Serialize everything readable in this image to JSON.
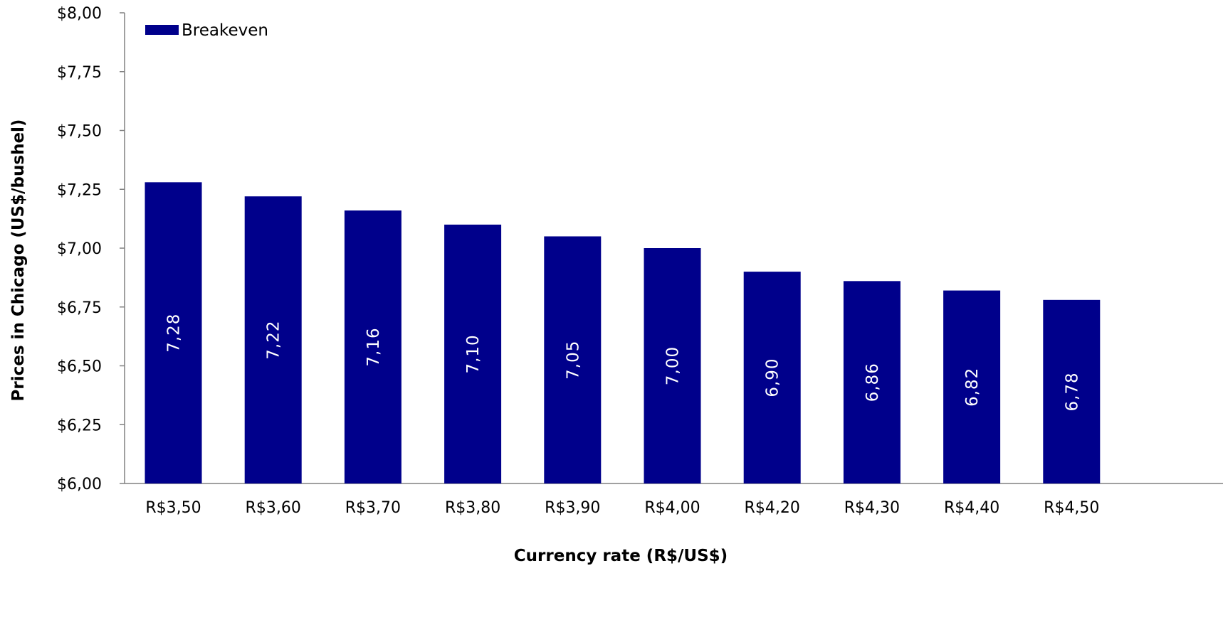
{
  "chart_data": {
    "type": "bar",
    "categories": [
      "R$3,50",
      "R$3,60",
      "R$3,70",
      "R$3,80",
      "R$3,90",
      "R$4,00",
      "R$4,20",
      "R$4,30",
      "R$4,40",
      "R$4,50"
    ],
    "series": [
      {
        "name": "Breakeven",
        "values": [
          7.28,
          7.22,
          7.16,
          7.1,
          7.05,
          7.0,
          6.9,
          6.86,
          6.82,
          6.78
        ],
        "data_labels": [
          "7,28",
          "7,22",
          "7,16",
          "7,10",
          "7,05",
          "7,00",
          "6,90",
          "6,86",
          "6,82",
          "6,78"
        ],
        "color": "#00008B"
      }
    ],
    "xlabel": "Currency rate (R$/US$)",
    "ylabel": "Prices in Chicago (US$/bushel)",
    "ylim": [
      6.0,
      8.0
    ],
    "y_ticks": [
      6.0,
      6.25,
      6.5,
      6.75,
      7.0,
      7.25,
      7.5,
      7.75,
      8.0
    ],
    "y_tick_labels": [
      "$6,00",
      "$6,25",
      "$6,50",
      "$6,75",
      "$7,00",
      "$7,25",
      "$7,50",
      "$7,75",
      "$8,00"
    ],
    "grid": false,
    "legend_position": "top-left",
    "data_label_orientation": "vertical"
  }
}
